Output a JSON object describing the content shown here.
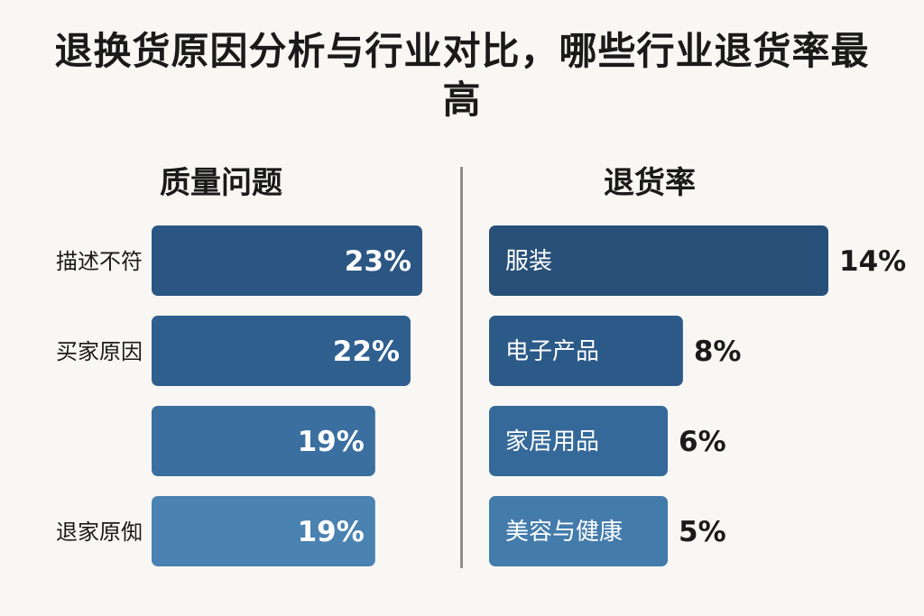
{
  "title": "退换货原因分析与行业对比，哪些行业退货率最高",
  "chart_data": [
    {
      "type": "bar",
      "orientation": "horizontal",
      "title": "质量问题",
      "categories": [
        "描述不符",
        "买家原因",
        "",
        "退家原倁"
      ],
      "values": [
        23,
        22,
        19,
        19
      ],
      "value_labels": [
        "23%",
        "22%",
        "19%",
        "19%"
      ],
      "unit": "%",
      "colors": [
        "#2b5683",
        "#2f5f8f",
        "#3b6f9f",
        "#4a82b1"
      ]
    },
    {
      "type": "bar",
      "orientation": "horizontal",
      "title": "退货率",
      "categories": [
        "服装",
        "电子产品",
        "家居用品",
        "美容与健康"
      ],
      "values": [
        14,
        8,
        6,
        5
      ],
      "value_labels": [
        "14%",
        "8%",
        "6%",
        "5%"
      ],
      "unit": "%",
      "colors": [
        "#274f78",
        "#2c5a88",
        "#356999",
        "#437bab"
      ]
    }
  ]
}
